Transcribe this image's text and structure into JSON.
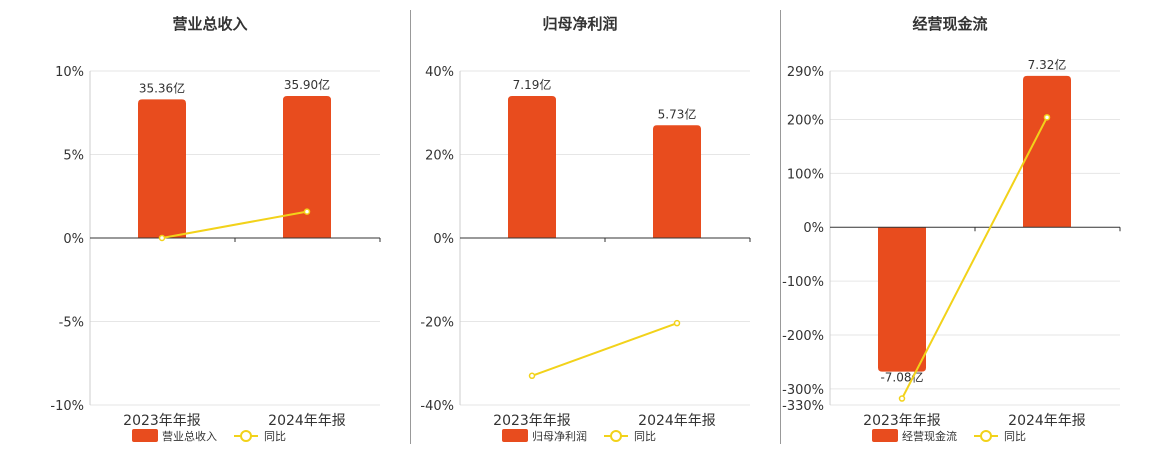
{
  "chart_data": [
    {
      "type": "bar",
      "title": "营业总收入",
      "categories": [
        "2023年年报",
        "2024年年报"
      ],
      "series": [
        {
          "name": "营业总收入",
          "type": "bar",
          "axis_value": [
            8.3,
            8.5
          ],
          "labels": [
            "35.36亿",
            "35.90亿"
          ],
          "color": "#E84C1E"
        },
        {
          "name": "同比",
          "type": "line",
          "values": [
            0.0,
            1.58
          ],
          "color": "#F2D21A"
        }
      ],
      "yticks": [
        "10%",
        "5%",
        "0%",
        "-5%",
        "-10%"
      ],
      "ylim": [
        -10,
        10
      ],
      "legend": [
        "营业总收入",
        "同比"
      ],
      "legend_position": "bottom"
    },
    {
      "type": "bar",
      "title": "归母净利润",
      "categories": [
        "2023年年报",
        "2024年年报"
      ],
      "series": [
        {
          "name": "归母净利润",
          "type": "bar",
          "axis_value": [
            34,
            27
          ],
          "labels": [
            "7.19亿",
            "5.73亿"
          ],
          "color": "#E84C1E"
        },
        {
          "name": "同比",
          "type": "line",
          "values": [
            -33.0,
            -20.4
          ],
          "color": "#F2D21A"
        }
      ],
      "yticks": [
        "40%",
        "20%",
        "0%",
        "-20%",
        "-40%"
      ],
      "ylim": [
        -40,
        40
      ],
      "legend": [
        "归母净利润",
        "同比"
      ],
      "legend_position": "bottom"
    },
    {
      "type": "bar",
      "title": "经营现金流",
      "categories": [
        "2023年年报",
        "2024年年报"
      ],
      "series": [
        {
          "name": "经营现金流",
          "type": "bar",
          "axis_value": [
            -268,
            281
          ],
          "labels": [
            "-7.08亿",
            "7.32亿"
          ],
          "color": "#E84C1E"
        },
        {
          "name": "同比",
          "type": "line",
          "values": [
            -318,
            204
          ],
          "color": "#F2D21A"
        }
      ],
      "yticks": [
        "290%",
        "200%",
        "100%",
        "0%",
        "-100%",
        "-200%",
        "-300%",
        "-330%"
      ],
      "ylim": [
        -330,
        290
      ],
      "legend": [
        "经营现金流",
        "同比"
      ],
      "legend_position": "bottom"
    }
  ]
}
